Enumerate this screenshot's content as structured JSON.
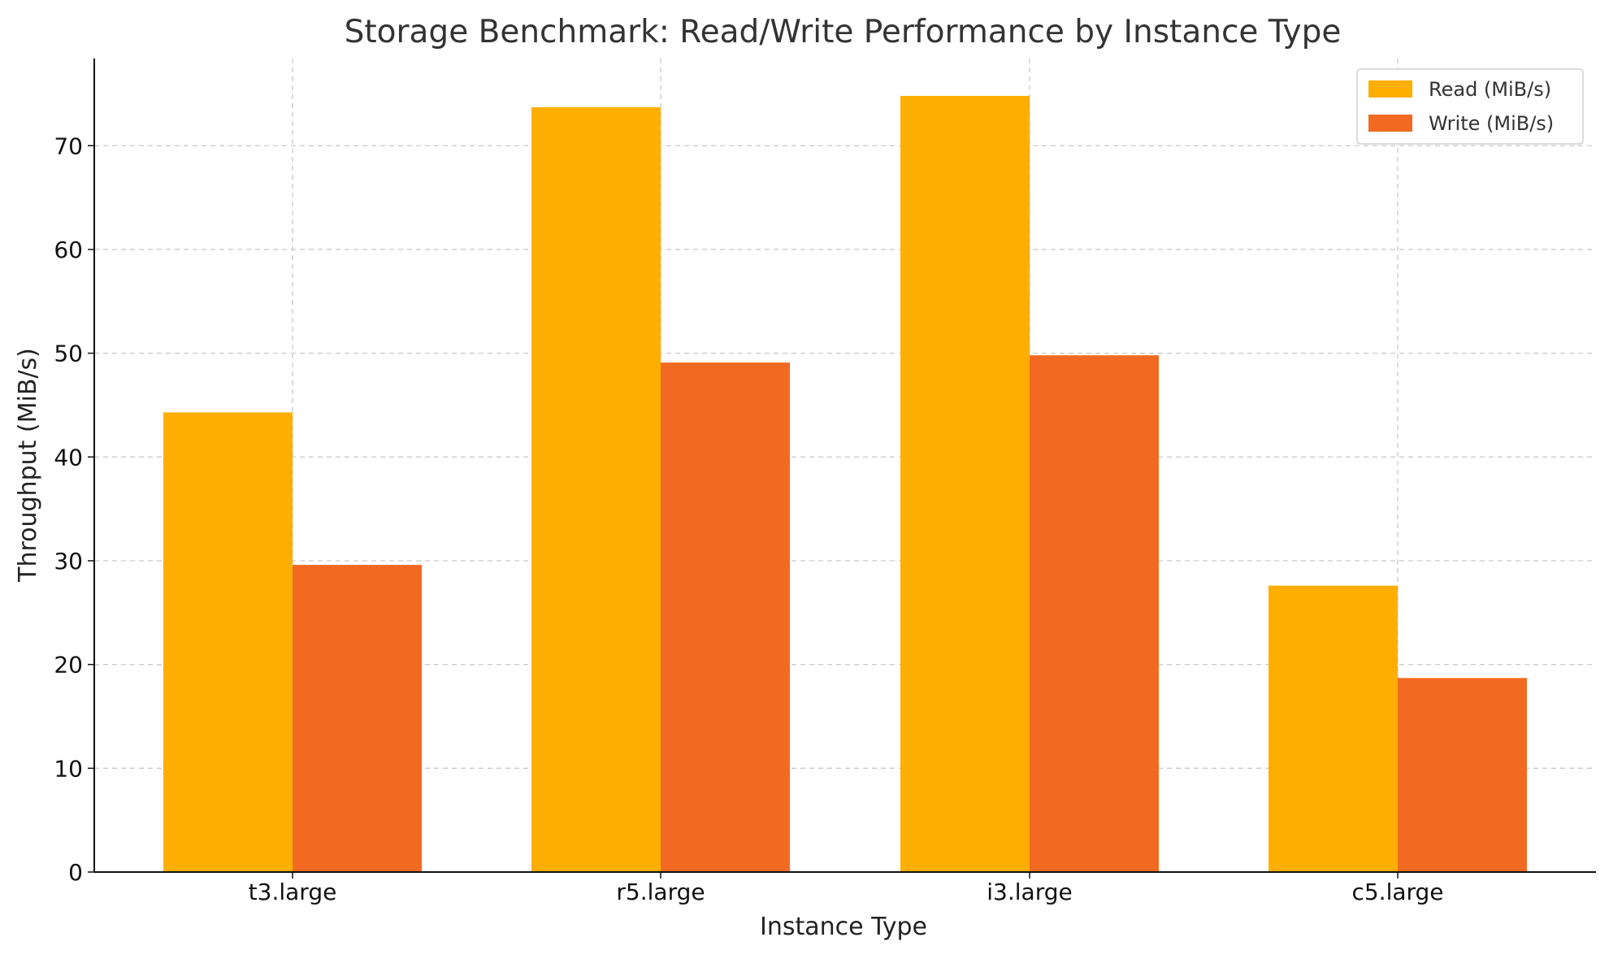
{
  "chart_data": {
    "type": "bar",
    "title": "Storage Benchmark: Read/Write Performance by Instance Type",
    "xlabel": "Instance Type",
    "ylabel": "Throughput (MiB/s)",
    "categories": [
      "t3.large",
      "r5.large",
      "i3.large",
      "c5.large"
    ],
    "series": [
      {
        "name": "Read (MiB/s)",
        "color": "#ffae03",
        "values": [
          44.3,
          73.7,
          74.8,
          27.6
        ]
      },
      {
        "name": "Write (MiB/s)",
        "color": "#f26a22",
        "values": [
          29.6,
          49.1,
          49.8,
          18.7
        ]
      }
    ],
    "ylim": [
      0,
      78.4
    ],
    "yticks": [
      0,
      10,
      20,
      30,
      40,
      50,
      60,
      70
    ],
    "grid": true,
    "legend_position": "top-right"
  }
}
